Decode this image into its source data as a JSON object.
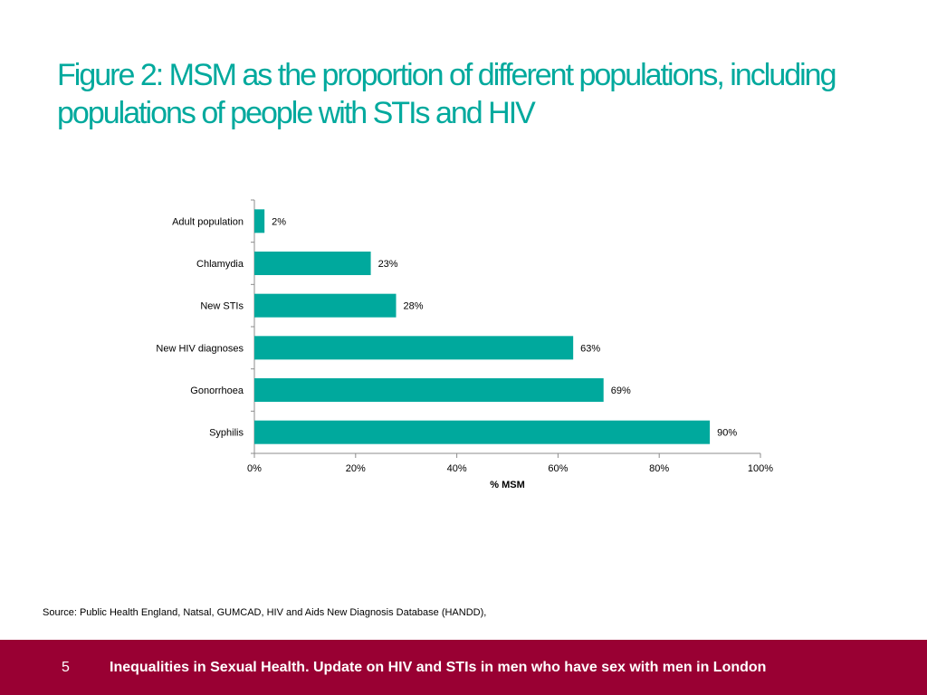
{
  "title": "Figure 2: MSM as the proportion of different populations, including populations of people with STIs and HIV",
  "chart_data": {
    "type": "bar",
    "orientation": "horizontal",
    "categories": [
      "Adult population",
      "Chlamydia",
      "New STIs",
      "New HIV diagnoses",
      "Gonorrhoea",
      "Syphilis"
    ],
    "values": [
      2,
      23,
      28,
      63,
      69,
      90
    ],
    "value_labels": [
      "2%",
      "23%",
      "28%",
      "63%",
      "69%",
      "90%"
    ],
    "xlabel": "% MSM",
    "xlim": [
      0,
      100
    ],
    "xticks": [
      0,
      20,
      40,
      60,
      80,
      100
    ],
    "xtick_labels": [
      "0%",
      "20%",
      "40%",
      "60%",
      "80%",
      "100%"
    ],
    "bar_color": "#00a99d"
  },
  "source": "Source: Public Health England, Natsal, GUMCAD, HIV and Aids New Diagnosis Database (HANDD),",
  "footer": {
    "page_number": "5",
    "text": "Inequalities in Sexual Health. Update on HIV and STIs in men who have sex with men in London",
    "bg_color": "#990033"
  },
  "colors": {
    "title": "#00a99d"
  }
}
